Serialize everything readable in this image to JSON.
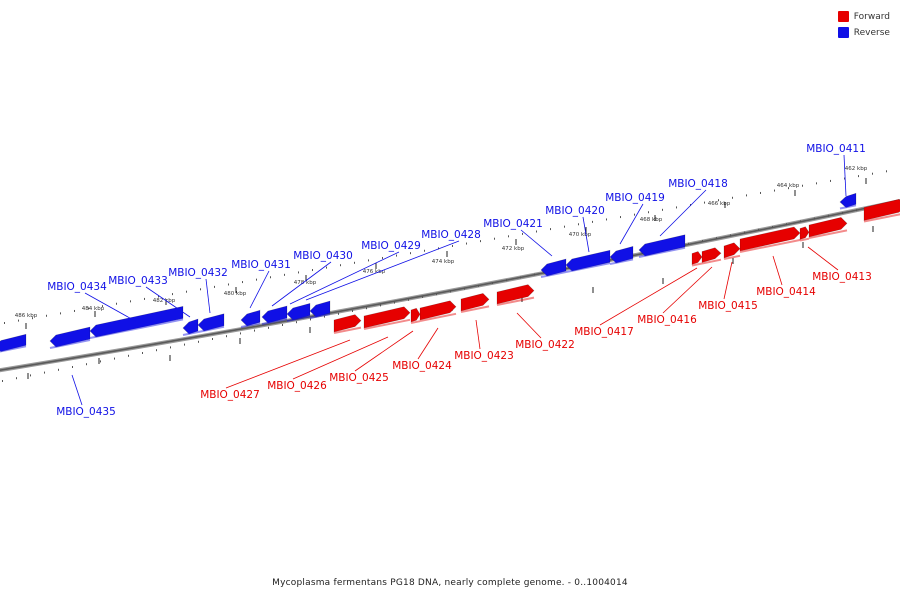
{
  "caption": "Mycoplasma fermentans PG18 DNA, nearly complete genome. - 0..1004014",
  "legend": [
    {
      "label": "Forward",
      "color": "#e60000"
    },
    {
      "label": "Reverse",
      "color": "#1010e6"
    }
  ],
  "colors": {
    "forward": "#e60000",
    "reverse": "#1010e6",
    "backbone": "#777777"
  },
  "ticks_outer": [
    "486 kbp",
    "484 kbp",
    "482 kbp",
    "480 kbp",
    "478 kbp",
    "476 kbp",
    "474 kbp",
    "472 kbp",
    "470 kbp",
    "468 kbp",
    "466 kbp",
    "464 kbp",
    "462 kbp"
  ],
  "genes": [
    {
      "id": "MBIO_0411",
      "strand": "reverse"
    },
    {
      "id": "MBIO_0413",
      "strand": "forward"
    },
    {
      "id": "MBIO_0414",
      "strand": "forward"
    },
    {
      "id": "MBIO_0415",
      "strand": "forward"
    },
    {
      "id": "MBIO_0416",
      "strand": "forward"
    },
    {
      "id": "MBIO_0417",
      "strand": "forward"
    },
    {
      "id": "MBIO_0418",
      "strand": "reverse"
    },
    {
      "id": "MBIO_0419",
      "strand": "reverse"
    },
    {
      "id": "MBIO_0420",
      "strand": "reverse"
    },
    {
      "id": "MBIO_0421",
      "strand": "reverse"
    },
    {
      "id": "MBIO_0422",
      "strand": "forward"
    },
    {
      "id": "MBIO_0423",
      "strand": "forward"
    },
    {
      "id": "MBIO_0424",
      "strand": "forward"
    },
    {
      "id": "MBIO_0425",
      "strand": "forward"
    },
    {
      "id": "MBIO_0426",
      "strand": "forward"
    },
    {
      "id": "MBIO_0427",
      "strand": "forward"
    },
    {
      "id": "MBIO_0428",
      "strand": "reverse"
    },
    {
      "id": "MBIO_0429",
      "strand": "reverse"
    },
    {
      "id": "MBIO_0430",
      "strand": "reverse"
    },
    {
      "id": "MBIO_0431",
      "strand": "reverse"
    },
    {
      "id": "MBIO_0432",
      "strand": "reverse"
    },
    {
      "id": "MBIO_0433",
      "strand": "reverse"
    },
    {
      "id": "MBIO_0434",
      "strand": "reverse"
    },
    {
      "id": "MBIO_0435",
      "strand": "reverse"
    }
  ]
}
